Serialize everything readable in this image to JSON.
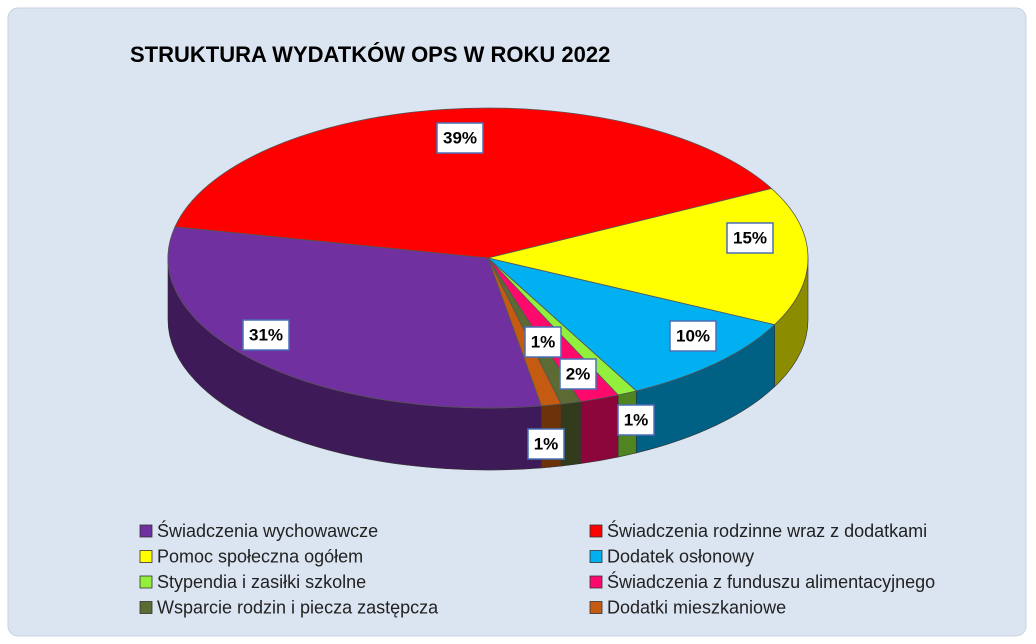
{
  "chart_data": {
    "type": "pie3d",
    "title": "STRUKTURA WYDATKÓW OPS W ROKU 2022",
    "categories": [
      "Świadczenia wychowawcze",
      "Świadczenia rodzinne wraz z dodatkami",
      "Pomoc społeczna ogółem",
      "Dodatek osłonowy",
      "Stypendia i zasiłki szkolne",
      "Świadczenia z funduszu alimentacyjnego",
      "Wsparcie rodzin i piecza zastępcza",
      "Dodatki mieszkaniowe"
    ],
    "values": [
      31,
      39,
      15,
      10,
      1,
      2,
      1,
      1
    ],
    "value_labels": [
      "31%",
      "39%",
      "15%",
      "10%",
      "1%",
      "2%",
      "1%",
      "1%"
    ],
    "colors": [
      "#7030a0",
      "#ff0000",
      "#ffff00",
      "#00b0f0",
      "#92f03c",
      "#ff0a6c",
      "#5b6b33",
      "#c55a11"
    ],
    "legend": "bottom"
  }
}
